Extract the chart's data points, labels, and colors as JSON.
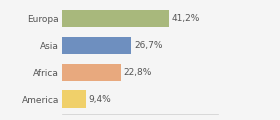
{
  "categories": [
    "Europa",
    "Asia",
    "Africa",
    "America"
  ],
  "values": [
    41.2,
    26.7,
    22.8,
    9.4
  ],
  "labels": [
    "41,2%",
    "26,7%",
    "22,8%",
    "9,4%"
  ],
  "bar_colors": [
    "#a8b87c",
    "#6e8fbf",
    "#e8a97e",
    "#f0d06a"
  ],
  "background_color": "#f5f5f5",
  "label_fontsize": 6.5,
  "category_fontsize": 6.5,
  "xlim": [
    0,
    60
  ]
}
